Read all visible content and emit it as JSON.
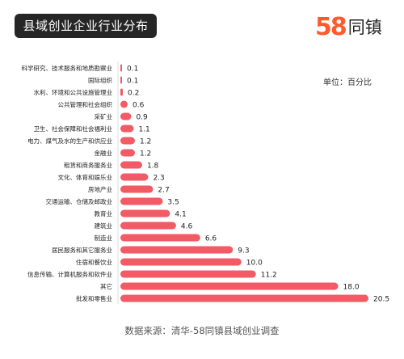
{
  "header": {
    "title": "县域创业企业行业分布",
    "logo_number": "58",
    "logo_text": "同镇"
  },
  "unit_label": "单位：百分比",
  "source": "数据来源：清华-58同镇县域创业调查",
  "colors": {
    "bar": "#f25a66",
    "title_bg": "#262626",
    "logo_accent": "#ff5a2c"
  },
  "chart_data": {
    "type": "bar",
    "orientation": "horizontal",
    "title": "县域创业企业行业分布",
    "unit": "单位：百分比",
    "categories": [
      "科学研究、技术服务和地质勘察业",
      "国际组织",
      "水利、环境和公共设施管理业",
      "公共管理和社会组织",
      "采矿业",
      "卫生、社会保障和社会福利业",
      "电力、煤气及水的生产和供应业",
      "金融业",
      "租赁和商务服务业",
      "文化、体育和娱乐业",
      "房地产业",
      "交通运输、仓储及邮政业",
      "教育业",
      "建筑业",
      "制造业",
      "居民服务和其它服务业",
      "住宿和餐饮业",
      "信息传输、计算机服务和软件业",
      "其它",
      "批发和零售业"
    ],
    "values": [
      0.1,
      0.1,
      0.2,
      0.6,
      0.9,
      1.1,
      1.2,
      1.2,
      1.8,
      2.3,
      2.7,
      3.5,
      4.1,
      4.6,
      6.6,
      9.3,
      10.0,
      11.2,
      18.0,
      20.5
    ],
    "value_labels": [
      "0.1",
      "0.1",
      "0.2",
      "0.6",
      "0.9",
      "1.1",
      "1.2",
      "1.2",
      "1.8",
      "2.3",
      "2.7",
      "3.5",
      "4.1",
      "4.6",
      "6.6",
      "9.3",
      "10.0",
      "11.2",
      "18.0",
      "20.5"
    ],
    "xlim": [
      0,
      20.5
    ],
    "grid": false,
    "legend": "none"
  }
}
